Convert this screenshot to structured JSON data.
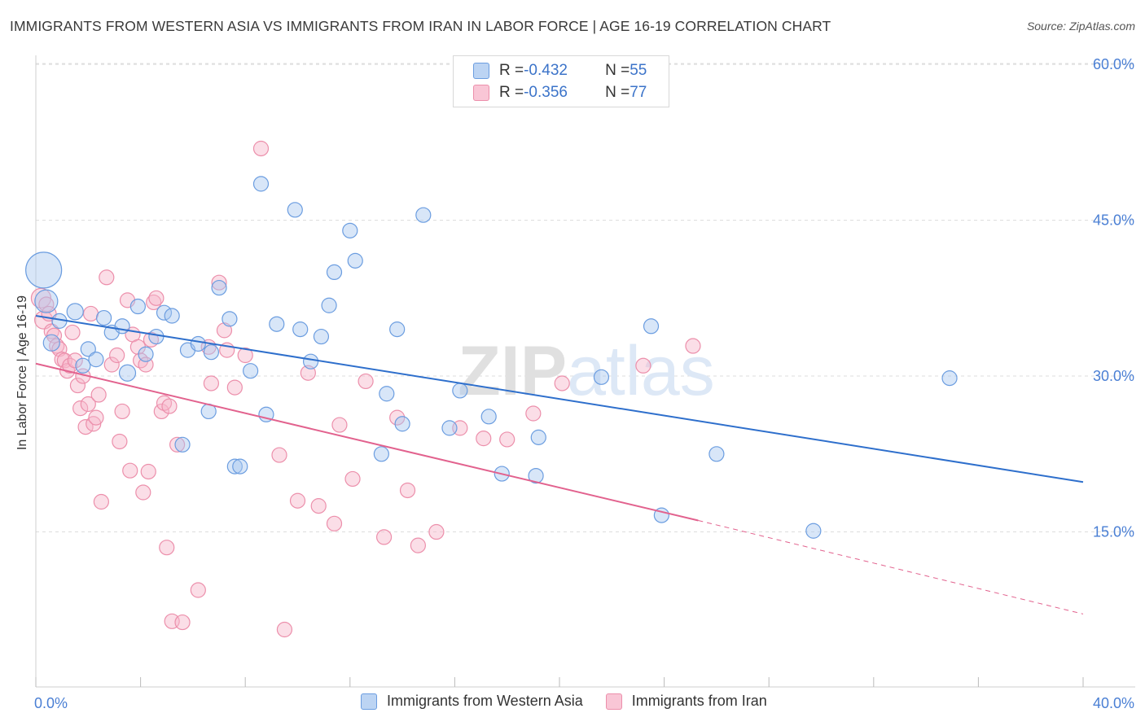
{
  "header": {
    "title": "IMMIGRANTS FROM WESTERN ASIA VS IMMIGRANTS FROM IRAN IN LABOR FORCE | AGE 16-19 CORRELATION CHART",
    "source": "Source: ZipAtlas.com"
  },
  "legend": {
    "rows": [
      {
        "r_label": "R = ",
        "r_value": "-0.432",
        "n_label": "N = ",
        "n_value": "55"
      },
      {
        "r_label": "R = ",
        "r_value": "-0.356",
        "n_label": "N = ",
        "n_value": "77"
      }
    ],
    "items": [
      "Immigrants from Western Asia",
      "Immigrants from Iran"
    ]
  },
  "colors": {
    "blue_fill": "#a9c8f0",
    "blue_stroke": "#6b9de0",
    "blue_line": "#2e6fcc",
    "pink_fill": "#f7b6ca",
    "pink_stroke": "#ec8fab",
    "pink_line": "#e2628e",
    "grid": "#dcdcdc",
    "tick_text": "#4a7fd4"
  },
  "chart_data": {
    "type": "scatter",
    "title": "IMMIGRANTS FROM WESTERN ASIA VS IMMIGRANTS FROM IRAN IN LABOR FORCE | AGE 16-19 CORRELATION CHART",
    "xlabel": "",
    "ylabel": "In Labor Force | Age 16-19",
    "xlim": [
      0,
      40
    ],
    "ylim": [
      0,
      63
    ],
    "x_tick_labels": [
      "0.0%",
      "40.0%"
    ],
    "y_ticks": [
      15,
      30,
      45,
      60
    ],
    "y_tick_labels": [
      "15.0%",
      "30.0%",
      "45.0%",
      "60.0%"
    ],
    "grid": true,
    "watermark": "ZIPatlas",
    "series": [
      {
        "name": "Immigrants from Western Asia",
        "color": "#a9c8f0",
        "trend": {
          "x": [
            0,
            40
          ],
          "y": [
            35.8,
            19.8
          ],
          "style": "solid"
        },
        "points": [
          [
            0.3,
            40.2,
            22
          ],
          [
            0.4,
            37.2,
            14
          ],
          [
            0.6,
            33.2,
            10
          ],
          [
            0.9,
            35.3,
            9
          ],
          [
            1.5,
            36.2,
            10
          ],
          [
            1.8,
            31.0,
            9
          ],
          [
            2.0,
            32.6,
            9
          ],
          [
            2.3,
            31.6,
            9
          ],
          [
            2.6,
            35.6,
            9
          ],
          [
            2.9,
            34.2,
            9
          ],
          [
            3.3,
            34.8,
            9
          ],
          [
            3.5,
            30.3,
            10
          ],
          [
            3.9,
            36.7,
            9
          ],
          [
            4.2,
            32.1,
            9
          ],
          [
            4.6,
            33.8,
            9
          ],
          [
            4.9,
            36.1,
            9
          ],
          [
            5.2,
            35.8,
            9
          ],
          [
            5.6,
            23.4,
            9
          ],
          [
            5.8,
            32.5,
            9
          ],
          [
            6.2,
            33.1,
            9
          ],
          [
            6.6,
            26.6,
            9
          ],
          [
            6.7,
            32.3,
            9
          ],
          [
            7.0,
            38.5,
            9
          ],
          [
            7.4,
            35.5,
            9
          ],
          [
            7.6,
            21.3,
            9
          ],
          [
            7.8,
            21.3,
            9
          ],
          [
            8.2,
            30.5,
            9
          ],
          [
            8.6,
            48.5,
            9
          ],
          [
            8.8,
            26.3,
            9
          ],
          [
            9.2,
            35.0,
            9
          ],
          [
            9.9,
            46.0,
            9
          ],
          [
            10.1,
            34.5,
            9
          ],
          [
            10.5,
            31.4,
            9
          ],
          [
            10.9,
            33.8,
            9
          ],
          [
            11.2,
            36.8,
            9
          ],
          [
            11.4,
            40.0,
            9
          ],
          [
            12.0,
            44.0,
            9
          ],
          [
            12.2,
            41.1,
            9
          ],
          [
            13.2,
            22.5,
            9
          ],
          [
            13.4,
            28.3,
            9
          ],
          [
            13.8,
            34.5,
            9
          ],
          [
            14.0,
            25.4,
            9
          ],
          [
            14.8,
            45.5,
            9
          ],
          [
            15.8,
            25.0,
            9
          ],
          [
            16.2,
            28.6,
            9
          ],
          [
            17.3,
            26.1,
            9
          ],
          [
            17.8,
            20.6,
            9
          ],
          [
            19.1,
            20.4,
            9
          ],
          [
            19.2,
            24.1,
            9
          ],
          [
            21.6,
            29.9,
            9
          ],
          [
            23.5,
            34.8,
            9
          ],
          [
            23.9,
            16.6,
            9
          ],
          [
            26.0,
            22.5,
            9
          ],
          [
            29.7,
            15.1,
            9
          ],
          [
            34.9,
            29.8,
            9
          ]
        ]
      },
      {
        "name": "Immigrants from Iran",
        "color": "#f7b6ca",
        "trend": {
          "x": [
            0,
            25.3,
            40
          ],
          "y": [
            31.2,
            16.1,
            7.1
          ],
          "style": "solid-then-dashed"
        },
        "points": [
          [
            0.2,
            37.5,
            12
          ],
          [
            0.3,
            35.4,
            11
          ],
          [
            0.4,
            36.9,
            9
          ],
          [
            0.5,
            36.0,
            9
          ],
          [
            0.6,
            34.3,
            9
          ],
          [
            0.7,
            33.9,
            9
          ],
          [
            0.8,
            32.9,
            9
          ],
          [
            0.9,
            32.6,
            9
          ],
          [
            1.0,
            31.6,
            9
          ],
          [
            1.1,
            31.5,
            9
          ],
          [
            1.2,
            30.5,
            9
          ],
          [
            1.3,
            31.0,
            9
          ],
          [
            1.4,
            34.2,
            9
          ],
          [
            1.5,
            31.5,
            9
          ],
          [
            1.6,
            29.1,
            9
          ],
          [
            1.7,
            26.9,
            9
          ],
          [
            1.8,
            30.0,
            9
          ],
          [
            1.9,
            25.1,
            9
          ],
          [
            2.0,
            27.3,
            9
          ],
          [
            2.1,
            36.0,
            9
          ],
          [
            2.2,
            25.4,
            9
          ],
          [
            2.3,
            26.0,
            9
          ],
          [
            2.4,
            28.2,
            9
          ],
          [
            2.5,
            17.9,
            9
          ],
          [
            2.7,
            39.5,
            9
          ],
          [
            2.9,
            31.1,
            9
          ],
          [
            3.1,
            32.0,
            9
          ],
          [
            3.2,
            23.7,
            9
          ],
          [
            3.3,
            26.6,
            9
          ],
          [
            3.5,
            37.3,
            9
          ],
          [
            3.6,
            20.9,
            9
          ],
          [
            3.7,
            34.0,
            9
          ],
          [
            3.9,
            32.8,
            9
          ],
          [
            4.0,
            31.5,
            9
          ],
          [
            4.1,
            18.8,
            9
          ],
          [
            4.2,
            31.1,
            9
          ],
          [
            4.3,
            20.8,
            9
          ],
          [
            4.4,
            33.5,
            9
          ],
          [
            4.5,
            37.1,
            9
          ],
          [
            4.6,
            37.5,
            9
          ],
          [
            4.8,
            26.6,
            9
          ],
          [
            4.9,
            27.4,
            9
          ],
          [
            5.0,
            13.5,
            9
          ],
          [
            5.1,
            27.1,
            9
          ],
          [
            5.2,
            6.4,
            9
          ],
          [
            5.4,
            23.4,
            9
          ],
          [
            5.6,
            6.3,
            9
          ],
          [
            6.2,
            9.4,
            9
          ],
          [
            6.6,
            32.8,
            9
          ],
          [
            6.7,
            29.3,
            9
          ],
          [
            7.0,
            39.0,
            9
          ],
          [
            7.2,
            34.4,
            9
          ],
          [
            7.3,
            32.5,
            9
          ],
          [
            7.6,
            28.9,
            9
          ],
          [
            8.0,
            32.0,
            9
          ],
          [
            8.6,
            51.9,
            9
          ],
          [
            9.3,
            22.4,
            9
          ],
          [
            9.5,
            5.6,
            9
          ],
          [
            10.0,
            18.0,
            9
          ],
          [
            10.4,
            30.3,
            9
          ],
          [
            10.8,
            17.5,
            9
          ],
          [
            11.4,
            15.8,
            9
          ],
          [
            11.6,
            25.3,
            9
          ],
          [
            12.1,
            20.1,
            9
          ],
          [
            12.6,
            29.5,
            9
          ],
          [
            13.3,
            14.5,
            9
          ],
          [
            13.8,
            26.0,
            9
          ],
          [
            14.2,
            19.0,
            9
          ],
          [
            14.6,
            13.7,
            9
          ],
          [
            15.3,
            15.0,
            9
          ],
          [
            16.2,
            25.0,
            9
          ],
          [
            17.1,
            24.0,
            9
          ],
          [
            18.0,
            23.9,
            9
          ],
          [
            19.0,
            26.4,
            9
          ],
          [
            20.1,
            29.3,
            9
          ],
          [
            23.2,
            31.0,
            9
          ],
          [
            25.1,
            32.9,
            9
          ]
        ]
      }
    ]
  }
}
